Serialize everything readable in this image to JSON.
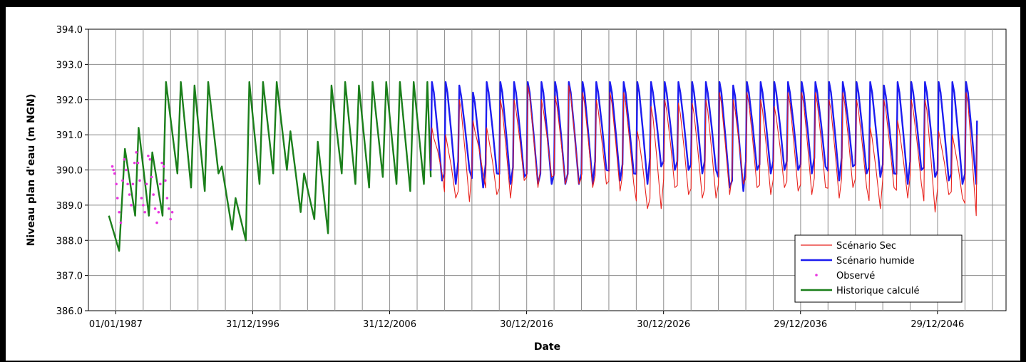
{
  "chart_data": {
    "type": "line",
    "title": "",
    "xlabel": "Date",
    "ylabel": "Niveau plan d'eau (m NGN)",
    "ylim": [
      386.0,
      394.0
    ],
    "yticks": [
      "386.0",
      "387.0",
      "388.0",
      "389.0",
      "390.0",
      "391.0",
      "392.0",
      "393.0",
      "394.0"
    ],
    "xlim": [
      "1985-01-01",
      "2052-01-01"
    ],
    "xticks": [
      {
        "date": "1987-01-01",
        "label": "01/01/1987"
      },
      {
        "date": "1996-12-31",
        "label": "31/12/1996"
      },
      {
        "date": "2006-12-31",
        "label": "31/12/2006"
      },
      {
        "date": "2016-12-30",
        "label": "30/12/2016"
      },
      {
        "date": "2026-12-30",
        "label": "30/12/2026"
      },
      {
        "date": "2036-12-29",
        "label": "29/12/2036"
      },
      {
        "date": "2046-12-29",
        "label": "29/12/2046"
      }
    ],
    "grid": true,
    "legend_position": "bottom-right",
    "series": [
      {
        "name": "Scénario Sec",
        "color": "#e8221c",
        "style": "thin-line",
        "x": [
          "2010-01-01",
          "2011-01-01",
          "2012-01-01",
          "2013-01-01",
          "2014-01-01",
          "2015-01-01",
          "2016-01-01",
          "2017-01-01",
          "2018-01-01",
          "2019-01-01",
          "2020-01-01",
          "2021-01-01",
          "2022-01-01",
          "2023-01-01",
          "2024-01-01",
          "2025-01-01",
          "2026-01-01",
          "2027-01-01",
          "2028-01-01",
          "2029-01-01",
          "2030-01-01",
          "2031-01-01",
          "2032-01-01",
          "2033-01-01",
          "2034-01-01",
          "2035-01-01",
          "2036-01-01",
          "2037-01-01",
          "2038-01-01",
          "2039-01-01",
          "2040-01-01",
          "2041-01-01",
          "2042-01-01",
          "2043-01-01",
          "2044-01-01",
          "2045-01-01",
          "2046-01-01",
          "2047-01-01",
          "2048-01-01",
          "2049-01-01"
        ],
        "max": [
          391.2,
          391.0,
          392.0,
          391.4,
          391.2,
          392.0,
          392.0,
          392.4,
          392.0,
          392.1,
          392.4,
          392.2,
          392.0,
          392.2,
          392.2,
          391.1,
          391.8,
          392.0,
          391.9,
          391.9,
          392.0,
          392.2,
          392.0,
          392.2,
          392.0,
          391.8,
          392.2,
          392.2,
          392.2,
          392.0,
          392.2,
          392.0,
          391.2,
          392.0,
          391.4,
          392.0,
          392.0,
          391.1,
          391.0,
          392.2
        ],
        "min": [
          389.9,
          389.2,
          389.1,
          389.9,
          389.3,
          389.2,
          389.7,
          389.5,
          389.8,
          389.6,
          389.6,
          389.5,
          389.6,
          389.4,
          389.6,
          388.9,
          388.9,
          389.5,
          389.3,
          389.2,
          389.2,
          389.3,
          389.6,
          389.5,
          389.3,
          389.5,
          389.4,
          389.3,
          389.5,
          389.2,
          389.5,
          389.5,
          388.9,
          389.5,
          389.2,
          389.6,
          388.8,
          389.3,
          389.2,
          388.7
        ],
        "end": 391.0
      },
      {
        "name": "Scénario humide",
        "color": "#1c1cf0",
        "style": "thick-line",
        "x": [
          "2010-01-01",
          "2011-01-01",
          "2012-01-01",
          "2013-01-01",
          "2014-01-01",
          "2015-01-01",
          "2016-01-01",
          "2017-01-01",
          "2018-01-01",
          "2019-01-01",
          "2020-01-01",
          "2021-01-01",
          "2022-01-01",
          "2023-01-01",
          "2024-01-01",
          "2025-01-01",
          "2026-01-01",
          "2027-01-01",
          "2028-01-01",
          "2029-01-01",
          "2030-01-01",
          "2031-01-01",
          "2032-01-01",
          "2033-01-01",
          "2034-01-01",
          "2035-01-01",
          "2036-01-01",
          "2037-01-01",
          "2038-01-01",
          "2039-01-01",
          "2040-01-01",
          "2041-01-01",
          "2042-01-01",
          "2043-01-01",
          "2044-01-01",
          "2045-01-01",
          "2046-01-01",
          "2047-01-01",
          "2048-01-01",
          "2049-01-01"
        ],
        "max": [
          392.5,
          392.5,
          392.4,
          392.2,
          392.5,
          392.5,
          392.5,
          392.5,
          392.5,
          392.5,
          392.5,
          392.5,
          392.5,
          392.5,
          392.5,
          392.5,
          392.5,
          392.5,
          392.5,
          392.5,
          392.5,
          392.5,
          392.4,
          392.5,
          392.5,
          392.5,
          392.5,
          392.5,
          392.5,
          392.5,
          392.5,
          392.5,
          392.5,
          392.4,
          392.5,
          392.5,
          392.5,
          392.5,
          392.5,
          392.5
        ],
        "min": [
          389.7,
          389.6,
          390.0,
          389.5,
          389.9,
          389.6,
          389.8,
          389.6,
          389.6,
          389.6,
          389.6,
          389.6,
          390.0,
          389.7,
          389.9,
          389.6,
          390.1,
          390.0,
          390.0,
          389.9,
          390.0,
          389.5,
          389.4,
          390.0,
          389.9,
          390.0,
          390.0,
          389.9,
          390.1,
          389.7,
          390.1,
          389.9,
          389.8,
          389.9,
          389.6,
          390.0,
          389.8,
          389.7,
          389.6,
          389.6
        ],
        "end": 391.4
      },
      {
        "name": "Observé",
        "color": "#e836e0",
        "style": "points",
        "x": [
          "1986-10-01",
          "1986-11-01",
          "1986-12-01",
          "1987-01-15",
          "1987-02-15",
          "1987-04-01",
          "1987-05-15",
          "1987-07-01",
          "1987-08-15",
          "1987-10-01",
          "1987-11-15",
          "1988-01-01",
          "1988-02-15",
          "1988-04-01",
          "1988-05-15",
          "1988-07-01",
          "1988-08-15",
          "1988-10-01",
          "1988-11-15",
          "1989-01-01",
          "1989-02-15",
          "1989-04-01",
          "1989-05-15",
          "1989-07-01",
          "1989-08-15",
          "1989-10-01",
          "1989-11-15",
          "1990-01-01",
          "1990-02-15",
          "1990-04-01",
          "1990-05-15",
          "1990-07-01",
          "1990-08-15",
          "1990-10-01",
          "1990-11-15",
          "1991-01-01",
          "1991-02-15"
        ],
        "y": [
          390.1,
          390.0,
          389.9,
          389.6,
          389.2,
          388.8,
          388.5,
          389.7,
          390.3,
          390.0,
          389.6,
          389.3,
          389.0,
          389.6,
          390.2,
          390.5,
          390.2,
          389.7,
          389.2,
          389.0,
          388.8,
          389.6,
          390.4,
          390.3,
          389.8,
          389.3,
          388.9,
          388.5,
          388.8,
          389.6,
          390.2,
          390.1,
          389.7,
          389.2,
          388.9,
          388.6,
          388.8
        ]
      },
      {
        "name": "Historique calculé",
        "color": "#1b7f1b",
        "style": "thick-line",
        "x": [
          "1986-07-01",
          "1987-04-01",
          "1987-09-01",
          "1988-06-01",
          "1988-09-01",
          "1989-06-01",
          "1989-09-01",
          "1990-06-01",
          "1990-09-01",
          "1991-07-01",
          "1991-10-01",
          "1992-07-01",
          "1992-10-01",
          "1993-07-01",
          "1993-10-01",
          "1994-07-01",
          "1994-10-01",
          "1995-07-01",
          "1995-10-01",
          "1996-07-01",
          "1996-10-01",
          "1997-07-01",
          "1997-10-01",
          "1998-07-01",
          "1998-10-01",
          "1999-07-01",
          "1999-10-01",
          "2000-07-01",
          "2000-10-01",
          "2001-07-01",
          "2001-10-01",
          "2002-07-01",
          "2002-10-01",
          "2003-07-01",
          "2003-10-01",
          "2004-07-01",
          "2004-10-01",
          "2005-07-01",
          "2005-10-01",
          "2006-07-01",
          "2006-10-01",
          "2007-07-01",
          "2007-10-01",
          "2008-07-01",
          "2008-10-01",
          "2009-07-01",
          "2009-10-01",
          "2010-01-01"
        ],
        "y": [
          388.7,
          387.7,
          390.6,
          388.7,
          391.2,
          388.7,
          390.5,
          388.7,
          392.5,
          389.9,
          392.5,
          389.5,
          392.4,
          389.4,
          392.5,
          389.9,
          390.1,
          388.3,
          389.2,
          388.0,
          392.5,
          389.6,
          392.5,
          389.9,
          392.5,
          390.0,
          391.1,
          388.8,
          389.9,
          388.6,
          390.8,
          388.2,
          392.4,
          389.9,
          392.5,
          389.6,
          392.4,
          389.5,
          392.5,
          389.8,
          392.5,
          389.6,
          392.5,
          389.4,
          392.5,
          389.6,
          392.5,
          389.8
        ]
      }
    ]
  }
}
